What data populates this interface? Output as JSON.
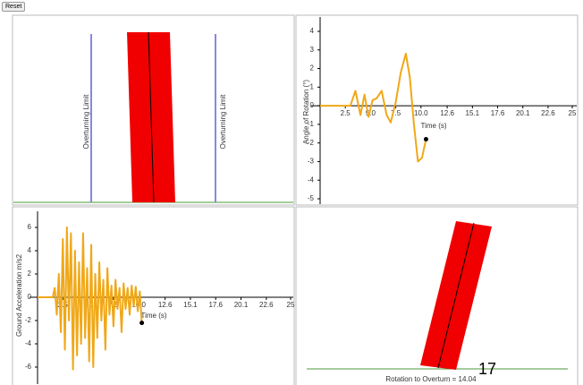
{
  "reset_button": "Reset",
  "block_view": {
    "limit_labels": [
      "Overturning Limit",
      "Overturning Limit"
    ]
  },
  "rotation_view": {
    "label": "Rotation to Overturn = 14.04",
    "counter": "17"
  },
  "chart_data": [
    {
      "type": "line",
      "x_label": "Time (s)",
      "y_label": "Angle of Rotation (°)",
      "color": "#f0a818",
      "x": [
        0,
        3.0,
        3.5,
        4.0,
        4.4,
        4.8,
        5.2,
        5.6,
        6.1,
        6.6,
        7.0,
        7.5,
        8.0,
        8.5,
        8.9,
        9.3,
        9.7,
        10.1,
        10.5
      ],
      "values": [
        0,
        0,
        0.8,
        -0.5,
        0.6,
        -0.6,
        0.3,
        0.4,
        0.8,
        -0.5,
        -0.9,
        0.2,
        1.8,
        2.8,
        1.5,
        -1.0,
        -3.0,
        -2.8,
        -1.8
      ],
      "current_point": {
        "x": 10.5,
        "y": -1.8
      },
      "xlim": [
        0,
        25
      ],
      "ylim": [
        -5,
        4
      ],
      "xticks": [
        2.5,
        {
          "value": 5,
          "label": "5.0"
        },
        7.5,
        {
          "value": 10,
          "label": "10.0"
        },
        12.6,
        15.1,
        17.6,
        20.1,
        22.6,
        25
      ],
      "yticks": [
        -5,
        -4,
        -3,
        -2,
        -1,
        0,
        1,
        2,
        3,
        4
      ]
    },
    {
      "type": "line",
      "x_label": "Time (s)",
      "y_label": "Ground Acceleration m/s2",
      "color": "#f0a818",
      "x": [
        0,
        1.5,
        1.7,
        1.9,
        2.1,
        2.3,
        2.5,
        2.7,
        2.9,
        3.1,
        3.3,
        3.5,
        3.7,
        3.9,
        4.1,
        4.3,
        4.5,
        4.7,
        4.9,
        5.1,
        5.3,
        5.5,
        5.7,
        5.9,
        6.1,
        6.3,
        6.5,
        6.7,
        6.9,
        7.1,
        7.3,
        7.5,
        7.7,
        7.9,
        8.1,
        8.3,
        8.5,
        8.7,
        8.9,
        9.1,
        9.3,
        9.5,
        9.7,
        9.9,
        10.1,
        10.3
      ],
      "values": [
        0,
        0,
        0.8,
        -1.5,
        2.0,
        -3.0,
        5.0,
        -4.5,
        6.0,
        -2.0,
        5.5,
        -6.2,
        4.0,
        -5.0,
        3.0,
        -4.0,
        5.5,
        -3.5,
        2.5,
        -5.5,
        4.5,
        -6.0,
        2.0,
        -3.5,
        3.0,
        -2.0,
        1.5,
        -4.5,
        2.5,
        -1.5,
        1.0,
        -2.5,
        1.5,
        -1.0,
        0.8,
        -3.0,
        1.2,
        -1.0,
        0.8,
        -1.5,
        1.0,
        -0.8,
        0.9,
        -1.2,
        0.5,
        -2.2
      ],
      "current_point": {
        "x": 10.3,
        "y": -2.2
      },
      "xlim": [
        0,
        25
      ],
      "ylim": [
        -6,
        6
      ],
      "xticks": [
        2.5,
        {
          "value": 5,
          "label": "5.0"
        },
        7.5,
        {
          "value": 10,
          "label": "10.0"
        },
        12.6,
        15.1,
        17.6,
        20.1,
        22.6,
        25
      ],
      "yticks": [
        -6,
        -4,
        -2,
        0,
        2,
        4,
        6
      ]
    }
  ]
}
